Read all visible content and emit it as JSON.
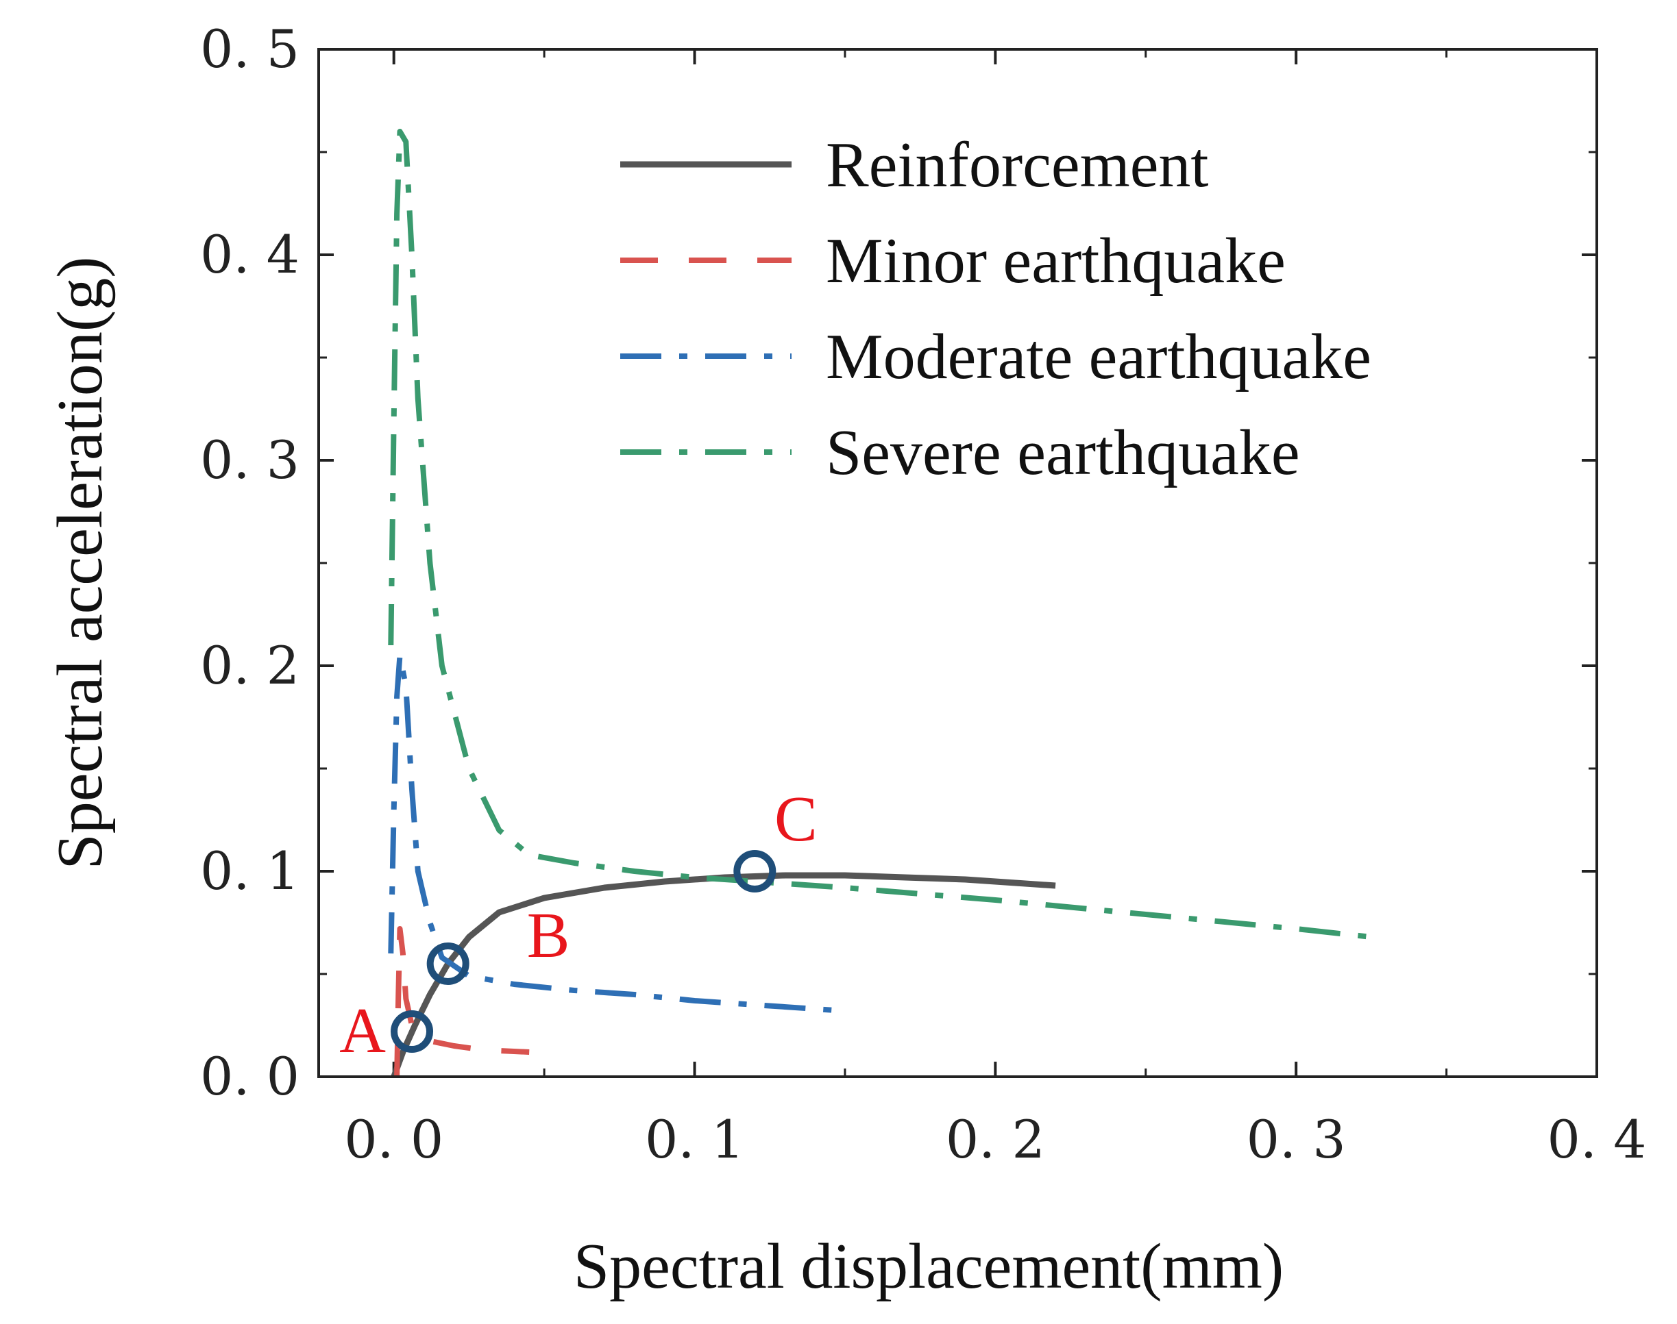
{
  "chart_data": {
    "type": "line",
    "title": "",
    "xlabel": "Spectral displacement(mm)",
    "ylabel": "Spectral acceleration(g)",
    "xlim": [
      -0.025,
      0.4
    ],
    "ylim": [
      0,
      0.5
    ],
    "xticks": [
      0.0,
      0.1,
      0.2,
      0.3,
      0.4
    ],
    "xtick_labels": [
      "0. 0",
      "0. 1",
      "0. 2",
      "0. 3",
      "0. 4"
    ],
    "yticks": [
      0.0,
      0.1,
      0.2,
      0.3,
      0.4,
      0.5
    ],
    "ytick_labels": [
      "0. 0",
      "0. 1",
      "0. 2",
      "0. 3",
      "0. 4",
      "0. 5"
    ],
    "legend_position": "top-right",
    "series": [
      {
        "name": "Reinforcement",
        "color": "#555555",
        "style": "solid",
        "x": [
          0.0,
          0.003,
          0.007,
          0.012,
          0.018,
          0.025,
          0.035,
          0.05,
          0.07,
          0.09,
          0.11,
          0.13,
          0.15,
          0.17,
          0.19,
          0.21,
          0.22
        ],
        "y": [
          0.0,
          0.012,
          0.025,
          0.04,
          0.055,
          0.068,
          0.08,
          0.087,
          0.092,
          0.095,
          0.097,
          0.098,
          0.098,
          0.097,
          0.096,
          0.094,
          0.093
        ]
      },
      {
        "name": "Minor earthquake",
        "color": "#d9534f",
        "style": "dashed",
        "x": [
          0.001,
          0.0015,
          0.002,
          0.003,
          0.004,
          0.006,
          0.01,
          0.02,
          0.03,
          0.045
        ],
        "y": [
          0.0,
          0.04,
          0.072,
          0.06,
          0.038,
          0.025,
          0.018,
          0.015,
          0.013,
          0.012
        ]
      },
      {
        "name": "Moderate earthquake",
        "color": "#2e6fb5",
        "style": "dashdot",
        "x": [
          -0.001,
          0.0,
          0.001,
          0.002,
          0.004,
          0.006,
          0.008,
          0.012,
          0.016,
          0.025,
          0.04,
          0.06,
          0.08,
          0.1,
          0.12,
          0.15
        ],
        "y": [
          0.06,
          0.13,
          0.185,
          0.205,
          0.19,
          0.14,
          0.1,
          0.075,
          0.058,
          0.049,
          0.045,
          0.042,
          0.04,
          0.037,
          0.035,
          0.032
        ]
      },
      {
        "name": "Severe earthquake",
        "color": "#3a9a6e",
        "style": "dashdot",
        "x": [
          -0.001,
          0.0,
          0.001,
          0.002,
          0.004,
          0.006,
          0.008,
          0.012,
          0.016,
          0.025,
          0.035,
          0.045,
          0.06,
          0.08,
          0.1,
          0.12,
          0.15,
          0.2,
          0.25,
          0.3,
          0.325
        ],
        "y": [
          0.21,
          0.32,
          0.42,
          0.46,
          0.455,
          0.4,
          0.33,
          0.25,
          0.2,
          0.15,
          0.12,
          0.108,
          0.104,
          0.1,
          0.097,
          0.095,
          0.092,
          0.086,
          0.079,
          0.072,
          0.068
        ]
      }
    ],
    "points": [
      {
        "label": "A",
        "x": 0.006,
        "y": 0.022,
        "label_side": "left"
      },
      {
        "label": "B",
        "x": 0.018,
        "y": 0.055,
        "label_side": "right"
      },
      {
        "label": "C",
        "x": 0.12,
        "y": 0.1,
        "label_side": "above"
      }
    ],
    "point_marker_color": "#1f4e79",
    "point_label_color": "#e8161c"
  }
}
